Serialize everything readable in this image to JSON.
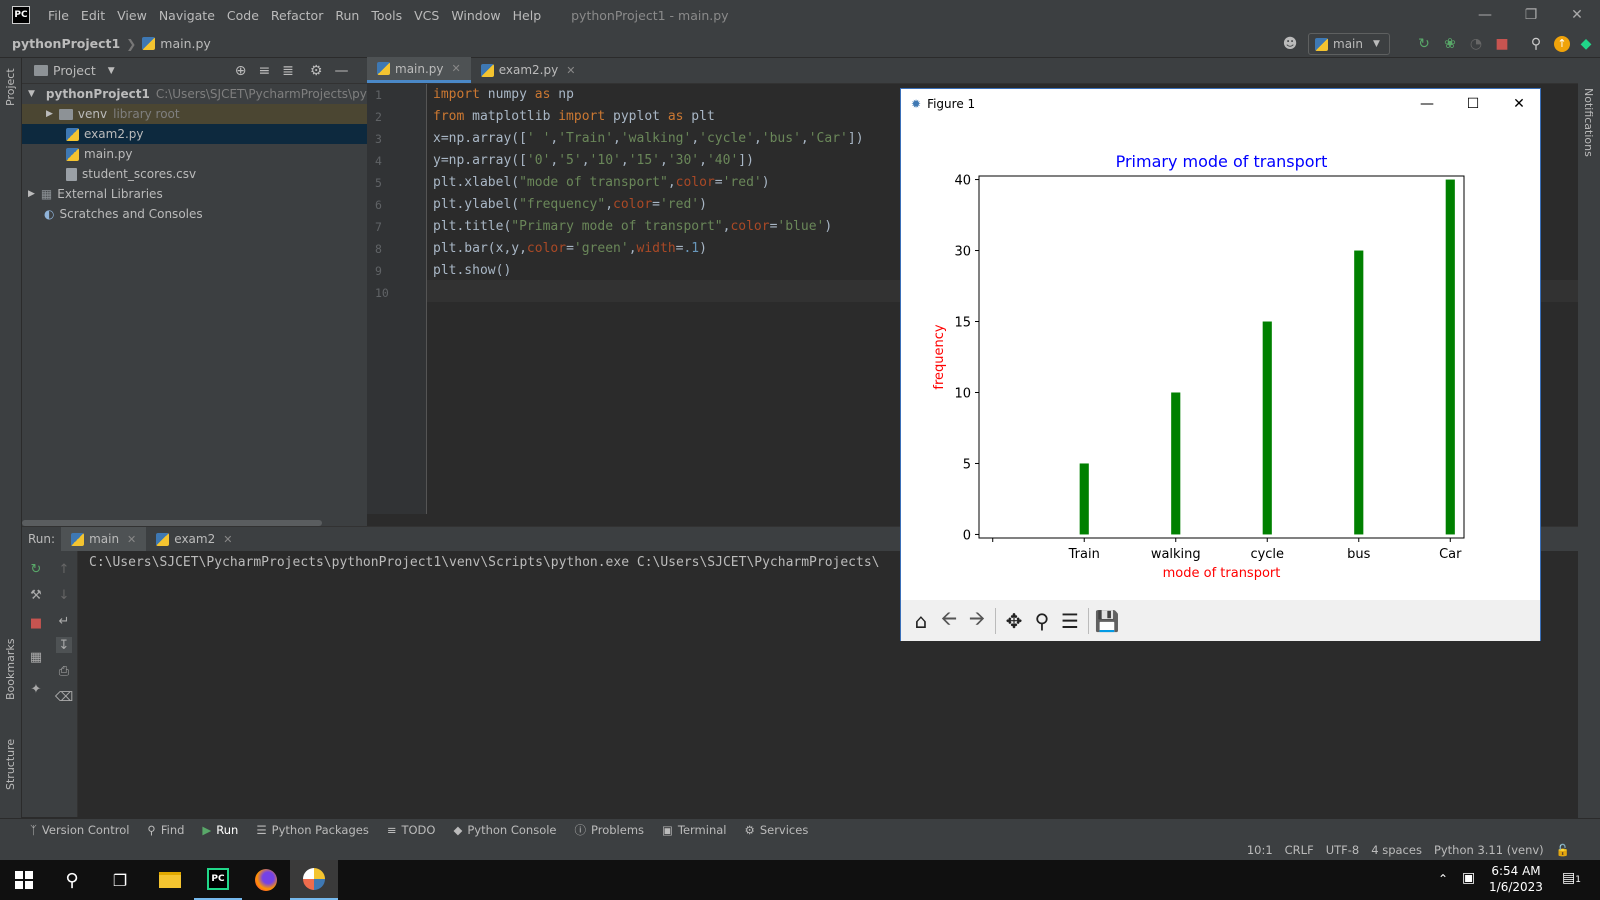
{
  "menubar": {
    "items": [
      "File",
      "Edit",
      "View",
      "Navigate",
      "Code",
      "Refactor",
      "Run",
      "Tools",
      "VCS",
      "Window",
      "Help"
    ],
    "window_title": "pythonProject1 - main.py"
  },
  "navbar": {
    "project": "pythonProject1",
    "file": "main.py",
    "run_config": "main"
  },
  "project_panel": {
    "title": "Project",
    "root_name": "pythonProject1",
    "root_path": "C:\\Users\\SJCET\\PycharmProjects\\pytho",
    "venv": "venv",
    "venv_note": "library root",
    "files": [
      "exam2.py",
      "main.py",
      "student_scores.csv"
    ],
    "external": "External Libraries",
    "scratches": "Scratches and Consoles"
  },
  "side_labels": {
    "project": "Project",
    "bookmarks": "Bookmarks",
    "structure": "Structure",
    "notifications": "Notifications"
  },
  "editor": {
    "tabs": [
      "main.py",
      "exam2.py"
    ],
    "line_numbers": [
      "1",
      "2",
      "3",
      "4",
      "5",
      "6",
      "7",
      "8",
      "9",
      "10"
    ]
  },
  "run_panel": {
    "label": "Run:",
    "tabs": [
      "main",
      "exam2"
    ],
    "output": "C:\\Users\\SJCET\\PycharmProjects\\pythonProject1\\venv\\Scripts\\python.exe C:\\Users\\SJCET\\PycharmProjects\\"
  },
  "bottom_tools": [
    "Version Control",
    "Find",
    "Run",
    "Python Packages",
    "TODO",
    "Python Console",
    "Problems",
    "Terminal",
    "Services"
  ],
  "status": {
    "position": "10:1",
    "line_sep": "CRLF",
    "encoding": "UTF-8",
    "indent": "4 spaces",
    "interpreter": "Python 3.11 (venv)"
  },
  "taskbar": {
    "time": "6:54 AM",
    "date": "1/6/2023",
    "notif_count": "1"
  },
  "figure": {
    "window_title": "Figure 1"
  },
  "chart_data": {
    "type": "bar",
    "title": "Primary mode of transport",
    "xlabel": "mode of transport",
    "ylabel": "frequency",
    "categories": [
      " ",
      "Train",
      "walking",
      "cycle",
      "bus",
      "Car"
    ],
    "values": [
      "0",
      "5",
      "10",
      "15",
      "30",
      "40"
    ],
    "bar_color": "#008000",
    "title_color": "#0000ff",
    "label_color": "#ff0000",
    "y_ticks": [
      "0",
      "5",
      "10",
      "15",
      "30",
      "40"
    ],
    "grid": false
  }
}
